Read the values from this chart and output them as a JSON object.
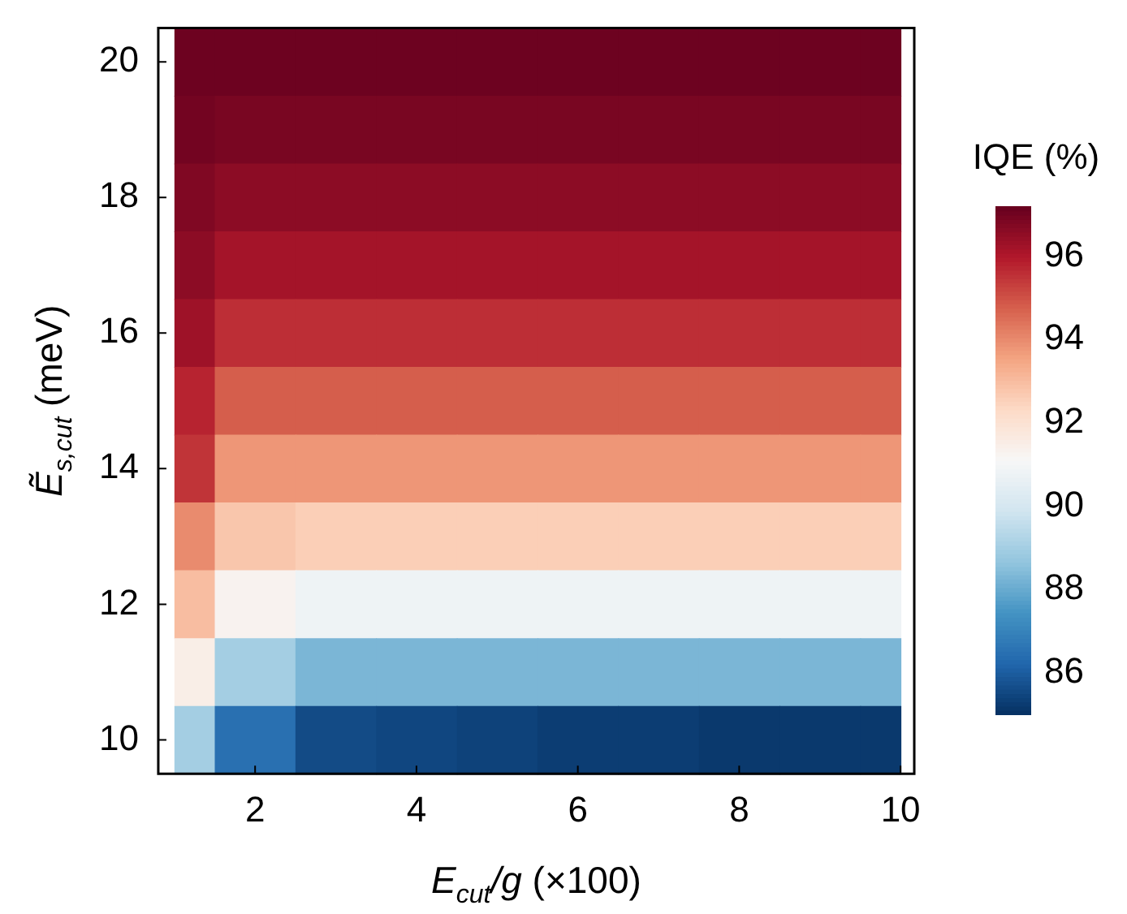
{
  "chart_data": {
    "type": "heatmap",
    "xlabel": "E$_{cut}$/g (×100)",
    "ylabel": "Ẽ$_{s,cut}$ (meV)",
    "clabel": "IQE (%)",
    "x": [
      1,
      2,
      3,
      4,
      5,
      6,
      7,
      8,
      9,
      10
    ],
    "cells": [
      [
        97.1,
        97.1,
        97.1,
        97.1,
        97.1,
        97.1,
        97.1,
        97.1,
        97.1,
        97.1
      ],
      [
        97.0,
        96.9,
        96.9,
        96.9,
        96.9,
        96.9,
        96.9,
        96.9,
        96.9,
        96.9
      ],
      [
        96.8,
        96.6,
        96.6,
        96.6,
        96.6,
        96.6,
        96.6,
        96.6,
        96.6,
        96.6
      ],
      [
        96.6,
        96.2,
        96.2,
        96.2,
        96.2,
        96.2,
        96.2,
        96.2,
        96.2,
        96.2
      ],
      [
        96.3,
        95.6,
        95.6,
        95.6,
        95.6,
        95.6,
        95.6,
        95.6,
        95.6,
        95.6
      ],
      [
        95.8,
        94.8,
        94.8,
        94.8,
        94.8,
        94.8,
        94.8,
        94.8,
        94.8,
        94.8
      ],
      [
        95.5,
        93.8,
        93.8,
        93.8,
        93.8,
        93.8,
        93.8,
        93.8,
        93.8,
        93.8
      ],
      [
        94.0,
        92.8,
        92.6,
        92.6,
        92.6,
        92.6,
        92.6,
        92.6,
        92.6,
        92.6
      ],
      [
        93.0,
        91.3,
        90.8,
        90.8,
        90.8,
        90.8,
        90.8,
        90.8,
        90.8,
        90.8
      ],
      [
        91.5,
        89.0,
        88.3,
        88.3,
        88.3,
        88.3,
        88.3,
        88.3,
        88.3,
        88.3
      ],
      [
        89.0,
        86.5,
        85.6,
        85.5,
        85.4,
        85.3,
        85.3,
        85.2,
        85.2,
        85.2
      ]
    ],
    "xlim": [
      0.8,
      10.17
    ],
    "ylim": [
      9.5,
      20.5
    ],
    "xticks": [
      2,
      4,
      6,
      8,
      10
    ],
    "yticks": [
      10,
      12,
      14,
      16,
      18,
      20
    ],
    "clim": [
      85,
      97.2
    ],
    "cticks": [
      86,
      88,
      90,
      92,
      94,
      96
    ]
  }
}
